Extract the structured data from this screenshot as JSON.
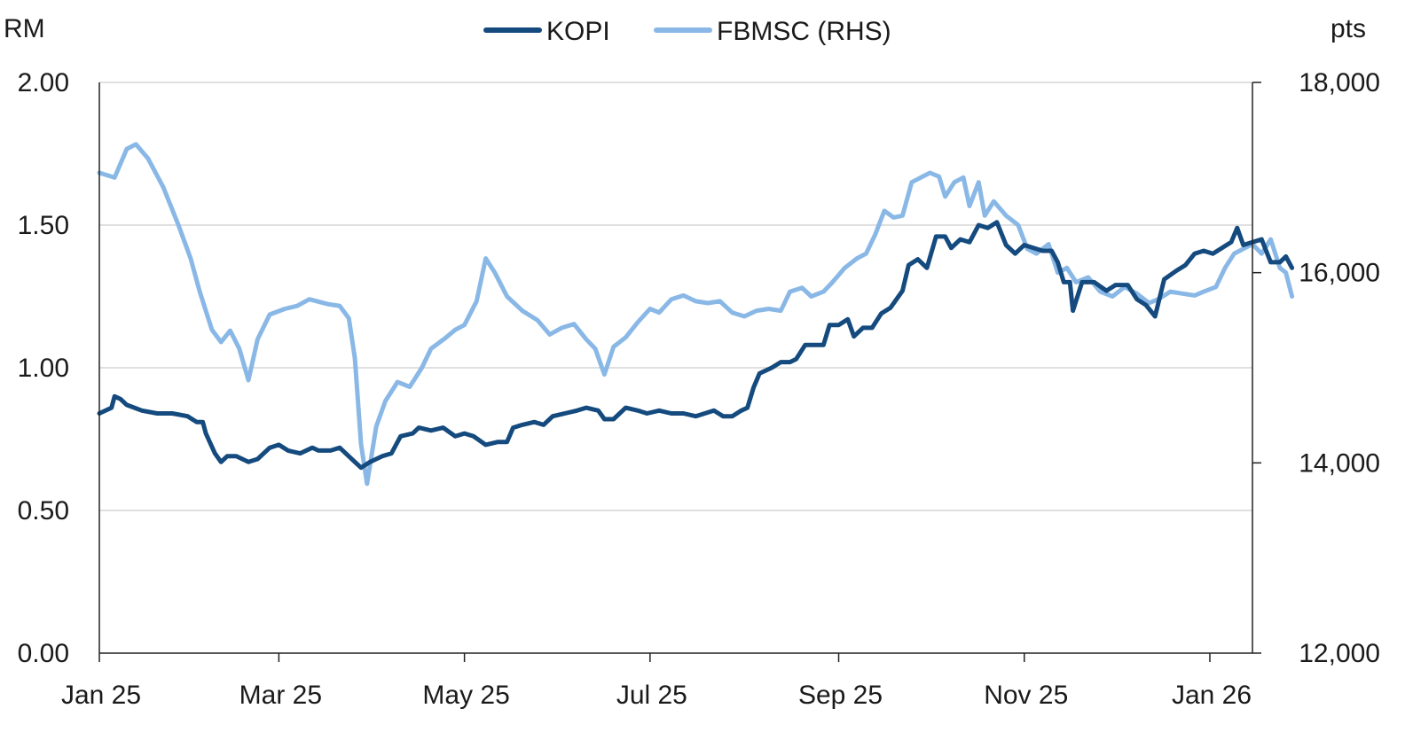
{
  "chart_data": {
    "type": "line",
    "title": "",
    "left_axis": {
      "unit": "RM",
      "range": [
        0,
        2
      ],
      "ticks": [
        0,
        0.5,
        1.0,
        1.5,
        2.0
      ],
      "tick_labels": [
        "0.00",
        "0.50",
        "1.00",
        "1.50",
        "2.00"
      ]
    },
    "right_axis": {
      "unit": "pts",
      "range": [
        12000,
        18000
      ],
      "ticks": [
        12000,
        14000,
        16000,
        18000
      ],
      "tick_labels": [
        "12,000",
        "14,000",
        "16,000",
        "18,000"
      ]
    },
    "x_axis": {
      "range": [
        "2025-01-01",
        "2026-01-15"
      ],
      "ticks": [
        "2025-01-01",
        "2025-03-01",
        "2025-05-01",
        "2025-07-01",
        "2025-09-01",
        "2025-11-01",
        "2026-01-01"
      ],
      "tick_labels": [
        "Jan 25",
        "Mar 25",
        "May 25",
        "Jul 25",
        "Sep 25",
        "Nov 25",
        "Jan 26"
      ]
    },
    "grid": "horizontal",
    "legend_position": "top-center",
    "series": [
      {
        "name": "KOPI",
        "axis": "left",
        "color": "#144a7e",
        "points": [
          [
            "2025-01-01",
            0.84
          ],
          [
            "2025-01-05",
            0.86
          ],
          [
            "2025-01-06",
            0.9
          ],
          [
            "2025-01-08",
            0.89
          ],
          [
            "2025-01-10",
            0.87
          ],
          [
            "2025-01-15",
            0.85
          ],
          [
            "2025-01-20",
            0.84
          ],
          [
            "2025-01-25",
            0.84
          ],
          [
            "2025-01-30",
            0.83
          ],
          [
            "2025-02-02",
            0.81
          ],
          [
            "2025-02-04",
            0.81
          ],
          [
            "2025-02-05",
            0.77
          ],
          [
            "2025-02-08",
            0.7
          ],
          [
            "2025-02-10",
            0.67
          ],
          [
            "2025-02-12",
            0.69
          ],
          [
            "2025-02-15",
            0.69
          ],
          [
            "2025-02-19",
            0.67
          ],
          [
            "2025-02-22",
            0.68
          ],
          [
            "2025-02-26",
            0.72
          ],
          [
            "2025-03-01",
            0.73
          ],
          [
            "2025-03-04",
            0.71
          ],
          [
            "2025-03-08",
            0.7
          ],
          [
            "2025-03-12",
            0.72
          ],
          [
            "2025-03-14",
            0.71
          ],
          [
            "2025-03-18",
            0.71
          ],
          [
            "2025-03-21",
            0.72
          ],
          [
            "2025-03-26",
            0.67
          ],
          [
            "2025-03-28",
            0.65
          ],
          [
            "2025-03-31",
            0.67
          ],
          [
            "2025-04-04",
            0.69
          ],
          [
            "2025-04-07",
            0.7
          ],
          [
            "2025-04-10",
            0.76
          ],
          [
            "2025-04-14",
            0.77
          ],
          [
            "2025-04-16",
            0.79
          ],
          [
            "2025-04-20",
            0.78
          ],
          [
            "2025-04-24",
            0.79
          ],
          [
            "2025-04-28",
            0.76
          ],
          [
            "2025-05-01",
            0.77
          ],
          [
            "2025-05-04",
            0.76
          ],
          [
            "2025-05-08",
            0.73
          ],
          [
            "2025-05-12",
            0.74
          ],
          [
            "2025-05-15",
            0.74
          ],
          [
            "2025-05-17",
            0.79
          ],
          [
            "2025-05-20",
            0.8
          ],
          [
            "2025-05-24",
            0.81
          ],
          [
            "2025-05-27",
            0.8
          ],
          [
            "2025-05-30",
            0.83
          ],
          [
            "2025-06-03",
            0.84
          ],
          [
            "2025-06-07",
            0.85
          ],
          [
            "2025-06-10",
            0.86
          ],
          [
            "2025-06-14",
            0.85
          ],
          [
            "2025-06-16",
            0.82
          ],
          [
            "2025-06-19",
            0.82
          ],
          [
            "2025-06-23",
            0.86
          ],
          [
            "2025-06-27",
            0.85
          ],
          [
            "2025-06-30",
            0.84
          ],
          [
            "2025-07-04",
            0.85
          ],
          [
            "2025-07-08",
            0.84
          ],
          [
            "2025-07-12",
            0.84
          ],
          [
            "2025-07-16",
            0.83
          ],
          [
            "2025-07-19",
            0.84
          ],
          [
            "2025-07-22",
            0.85
          ],
          [
            "2025-07-25",
            0.83
          ],
          [
            "2025-07-28",
            0.83
          ],
          [
            "2025-07-31",
            0.85
          ],
          [
            "2025-08-02",
            0.86
          ],
          [
            "2025-08-04",
            0.93
          ],
          [
            "2025-08-06",
            0.98
          ],
          [
            "2025-08-10",
            1.0
          ],
          [
            "2025-08-13",
            1.02
          ],
          [
            "2025-08-16",
            1.02
          ],
          [
            "2025-08-18",
            1.03
          ],
          [
            "2025-08-21",
            1.08
          ],
          [
            "2025-08-24",
            1.08
          ],
          [
            "2025-08-27",
            1.08
          ],
          [
            "2025-08-29",
            1.15
          ],
          [
            "2025-09-01",
            1.15
          ],
          [
            "2025-09-04",
            1.17
          ],
          [
            "2025-09-06",
            1.11
          ],
          [
            "2025-09-09",
            1.14
          ],
          [
            "2025-09-12",
            1.14
          ],
          [
            "2025-09-15",
            1.19
          ],
          [
            "2025-09-18",
            1.21
          ],
          [
            "2025-09-22",
            1.27
          ],
          [
            "2025-09-24",
            1.36
          ],
          [
            "2025-09-27",
            1.38
          ],
          [
            "2025-09-30",
            1.35
          ],
          [
            "2025-10-03",
            1.46
          ],
          [
            "2025-10-06",
            1.46
          ],
          [
            "2025-10-08",
            1.42
          ],
          [
            "2025-10-11",
            1.45
          ],
          [
            "2025-10-14",
            1.44
          ],
          [
            "2025-10-17",
            1.5
          ],
          [
            "2025-10-20",
            1.49
          ],
          [
            "2025-10-23",
            1.51
          ],
          [
            "2025-10-26",
            1.43
          ],
          [
            "2025-10-29",
            1.4
          ],
          [
            "2025-11-01",
            1.43
          ],
          [
            "2025-11-04",
            1.42
          ],
          [
            "2025-11-07",
            1.41
          ],
          [
            "2025-11-10",
            1.41
          ],
          [
            "2025-11-12",
            1.37
          ],
          [
            "2025-11-14",
            1.3
          ],
          [
            "2025-11-16",
            1.3
          ],
          [
            "2025-11-17",
            1.2
          ],
          [
            "2025-11-20",
            1.3
          ],
          [
            "2025-11-24",
            1.3
          ],
          [
            "2025-11-28",
            1.27
          ],
          [
            "2025-12-01",
            1.29
          ],
          [
            "2025-12-05",
            1.29
          ],
          [
            "2025-12-08",
            1.24
          ],
          [
            "2025-12-11",
            1.22
          ],
          [
            "2025-12-14",
            1.18
          ],
          [
            "2025-12-17",
            1.31
          ],
          [
            "2025-12-21",
            1.34
          ],
          [
            "2025-12-24",
            1.36
          ],
          [
            "2025-12-27",
            1.4
          ],
          [
            "2025-12-30",
            1.41
          ],
          [
            "2026-01-02",
            1.4
          ],
          [
            "2026-01-05",
            1.42
          ],
          [
            "2026-01-08",
            1.44
          ],
          [
            "2026-01-10",
            1.49
          ],
          [
            "2026-01-12",
            1.43
          ],
          [
            "2026-01-15",
            1.44
          ],
          [
            "2026-01-18",
            1.45
          ],
          [
            "2026-01-21",
            1.37
          ],
          [
            "2026-01-24",
            1.37
          ],
          [
            "2026-01-26",
            1.39
          ],
          [
            "2026-01-28",
            1.35
          ]
        ]
      },
      {
        "name": "FBMSC (RHS)",
        "axis": "right",
        "color": "#8ab8e6",
        "points": [
          [
            "2025-01-01",
            17050
          ],
          [
            "2025-01-06",
            17000
          ],
          [
            "2025-01-10",
            17300
          ],
          [
            "2025-01-13",
            17350
          ],
          [
            "2025-01-17",
            17200
          ],
          [
            "2025-01-22",
            16900
          ],
          [
            "2025-01-27",
            16500
          ],
          [
            "2025-01-31",
            16150
          ],
          [
            "2025-02-03",
            15800
          ],
          [
            "2025-02-07",
            15400
          ],
          [
            "2025-02-10",
            15270
          ],
          [
            "2025-02-13",
            15390
          ],
          [
            "2025-02-16",
            15200
          ],
          [
            "2025-02-19",
            14870
          ],
          [
            "2025-02-22",
            15300
          ],
          [
            "2025-02-26",
            15560
          ],
          [
            "2025-03-03",
            15620
          ],
          [
            "2025-03-07",
            15650
          ],
          [
            "2025-03-11",
            15720
          ],
          [
            "2025-03-17",
            15670
          ],
          [
            "2025-03-21",
            15650
          ],
          [
            "2025-03-24",
            15520
          ],
          [
            "2025-03-26",
            15100
          ],
          [
            "2025-03-28",
            14200
          ],
          [
            "2025-03-30",
            13780
          ],
          [
            "2025-04-02",
            14380
          ],
          [
            "2025-04-05",
            14650
          ],
          [
            "2025-04-09",
            14850
          ],
          [
            "2025-04-13",
            14800
          ],
          [
            "2025-04-17",
            15000
          ],
          [
            "2025-04-20",
            15200
          ],
          [
            "2025-04-25",
            15320
          ],
          [
            "2025-04-28",
            15400
          ],
          [
            "2025-05-01",
            15450
          ],
          [
            "2025-05-05",
            15700
          ],
          [
            "2025-05-08",
            16150
          ],
          [
            "2025-05-11",
            16000
          ],
          [
            "2025-05-15",
            15750
          ],
          [
            "2025-05-20",
            15600
          ],
          [
            "2025-05-25",
            15500
          ],
          [
            "2025-05-29",
            15350
          ],
          [
            "2025-06-02",
            15420
          ],
          [
            "2025-06-06",
            15460
          ],
          [
            "2025-06-10",
            15300
          ],
          [
            "2025-06-13",
            15200
          ],
          [
            "2025-06-16",
            14930
          ],
          [
            "2025-06-19",
            15220
          ],
          [
            "2025-06-23",
            15320
          ],
          [
            "2025-06-27",
            15480
          ],
          [
            "2025-07-01",
            15620
          ],
          [
            "2025-07-04",
            15580
          ],
          [
            "2025-07-08",
            15720
          ],
          [
            "2025-07-12",
            15760
          ],
          [
            "2025-07-16",
            15700
          ],
          [
            "2025-07-20",
            15680
          ],
          [
            "2025-07-24",
            15700
          ],
          [
            "2025-07-28",
            15580
          ],
          [
            "2025-08-01",
            15540
          ],
          [
            "2025-08-05",
            15600
          ],
          [
            "2025-08-09",
            15620
          ],
          [
            "2025-08-13",
            15600
          ],
          [
            "2025-08-16",
            15800
          ],
          [
            "2025-08-20",
            15840
          ],
          [
            "2025-08-23",
            15750
          ],
          [
            "2025-08-27",
            15800
          ],
          [
            "2025-08-30",
            15900
          ],
          [
            "2025-09-03",
            16050
          ],
          [
            "2025-09-07",
            16150
          ],
          [
            "2025-09-10",
            16200
          ],
          [
            "2025-09-13",
            16400
          ],
          [
            "2025-09-16",
            16650
          ],
          [
            "2025-09-19",
            16580
          ],
          [
            "2025-09-22",
            16600
          ],
          [
            "2025-09-25",
            16950
          ],
          [
            "2025-09-28",
            17000
          ],
          [
            "2025-10-01",
            17050
          ],
          [
            "2025-10-04",
            17010
          ],
          [
            "2025-10-06",
            16800
          ],
          [
            "2025-10-09",
            16950
          ],
          [
            "2025-10-12",
            17000
          ],
          [
            "2025-10-14",
            16700
          ],
          [
            "2025-10-17",
            16950
          ],
          [
            "2025-10-19",
            16600
          ],
          [
            "2025-10-22",
            16750
          ],
          [
            "2025-10-26",
            16600
          ],
          [
            "2025-10-30",
            16500
          ],
          [
            "2025-11-02",
            16250
          ],
          [
            "2025-11-05",
            16200
          ],
          [
            "2025-11-09",
            16300
          ],
          [
            "2025-11-12",
            16000
          ],
          [
            "2025-11-15",
            16050
          ],
          [
            "2025-11-18",
            15900
          ],
          [
            "2025-11-22",
            15950
          ],
          [
            "2025-11-26",
            15800
          ],
          [
            "2025-11-30",
            15750
          ],
          [
            "2025-12-04",
            15850
          ],
          [
            "2025-12-08",
            15780
          ],
          [
            "2025-12-12",
            15680
          ],
          [
            "2025-12-15",
            15720
          ],
          [
            "2025-12-19",
            15800
          ],
          [
            "2025-12-23",
            15780
          ],
          [
            "2025-12-27",
            15760
          ],
          [
            "2025-12-30",
            15800
          ],
          [
            "2026-01-03",
            15850
          ],
          [
            "2026-01-06",
            16050
          ],
          [
            "2026-01-09",
            16200
          ],
          [
            "2026-01-12",
            16250
          ],
          [
            "2026-01-15",
            16300
          ],
          [
            "2026-01-18",
            16200
          ],
          [
            "2026-01-21",
            16350
          ],
          [
            "2026-01-24",
            16050
          ],
          [
            "2026-01-26",
            16000
          ],
          [
            "2026-01-28",
            15750
          ]
        ]
      }
    ]
  },
  "colors": {
    "kopi": "#144a7e",
    "fbmsc": "#8ab8e6",
    "gridline": "#d6d6d6",
    "axis": "#222222"
  }
}
